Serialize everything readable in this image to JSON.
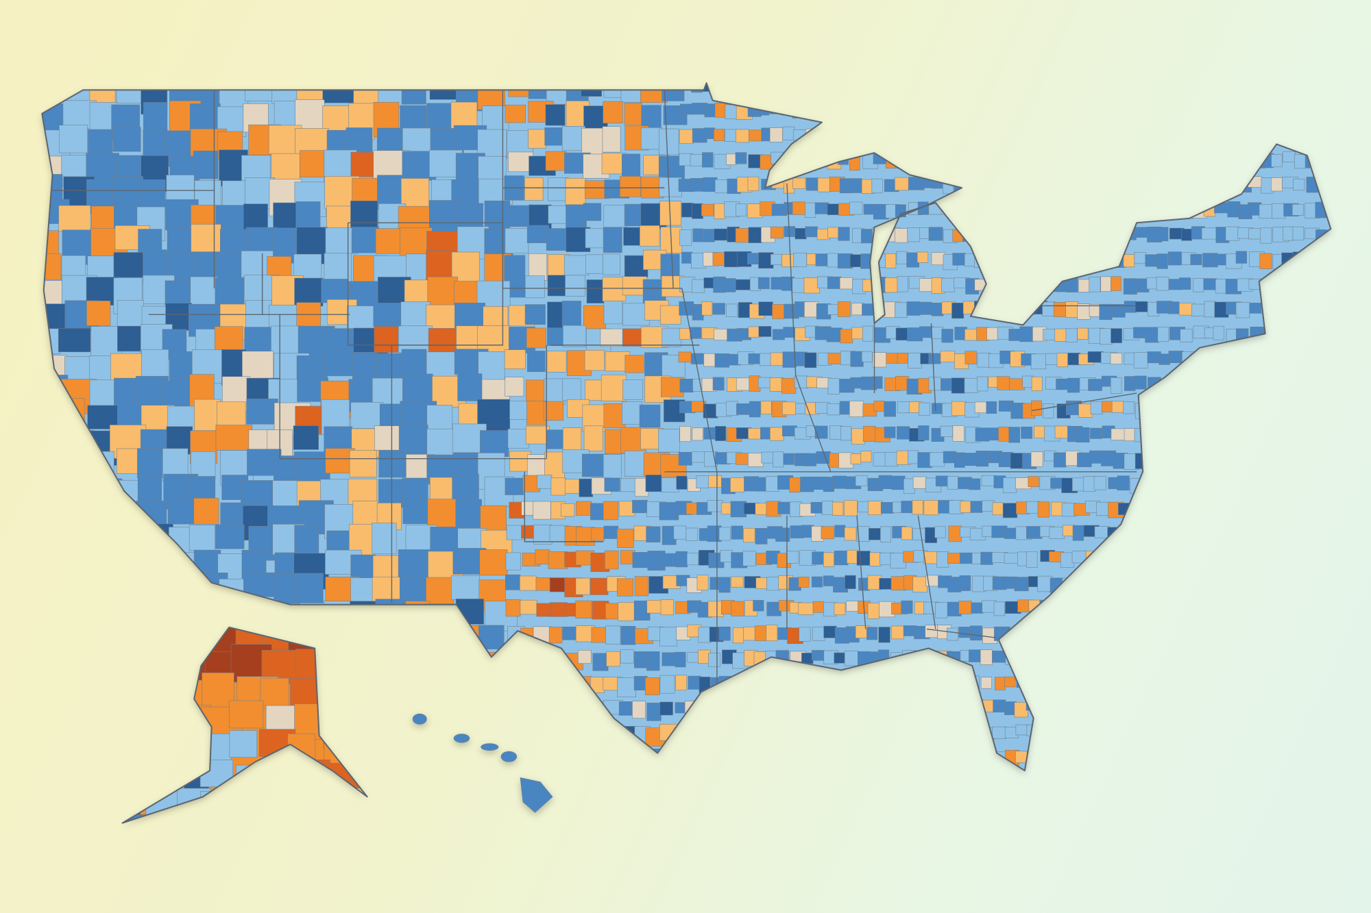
{
  "map": {
    "type": "choropleth",
    "geography": "US counties",
    "palette": [
      "#2d5e94",
      "#4a86c1",
      "#8fc2e6",
      "#e4d5c0",
      "#f8bc6c",
      "#f28e2f",
      "#dc6320",
      "#a63f1d"
    ],
    "background": [
      "#f6f1c2",
      "#e3f4ea"
    ],
    "border_color": "#5d6670"
  }
}
